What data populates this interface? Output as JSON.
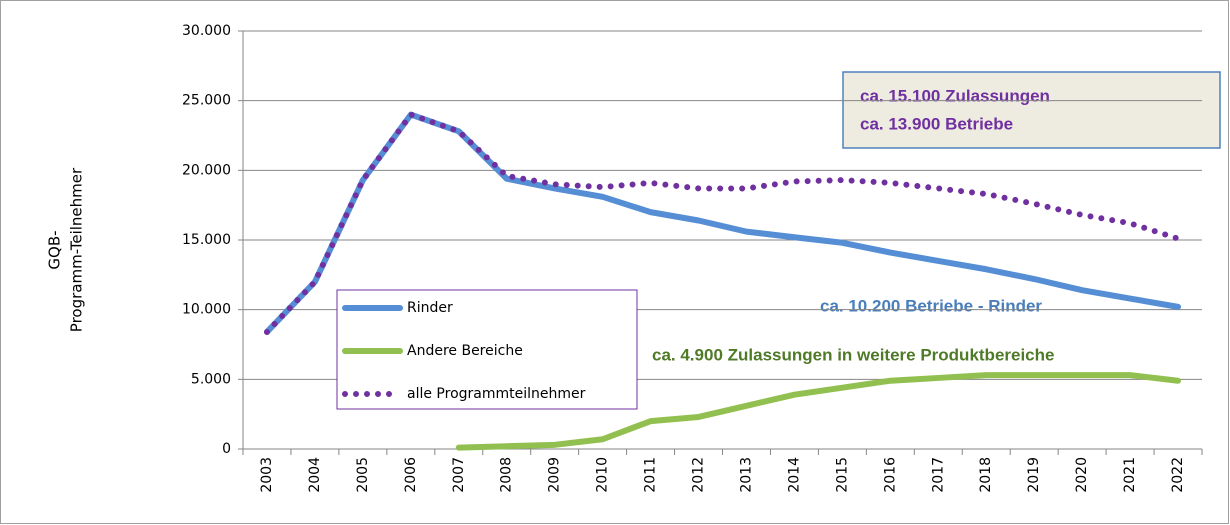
{
  "chart_data": {
    "type": "line",
    "ylabel": [
      "GQB-",
      "Programm-Teilnehmer"
    ],
    "categories": [
      "2003",
      "2004",
      "2005",
      "2006",
      "2007",
      "2008",
      "2009",
      "2010",
      "2011",
      "2012",
      "2013",
      "2014",
      "2015",
      "2016",
      "2017",
      "2018",
      "2019",
      "2020",
      "2021",
      "2022"
    ],
    "series": [
      {
        "name": "Rinder",
        "color": "#558ed5",
        "style": "solid",
        "values": [
          8400,
          12000,
          19300,
          24000,
          22800,
          19400,
          18700,
          18100,
          17000,
          16400,
          15600,
          15200,
          14800,
          14100,
          13500,
          12900,
          12200,
          11400,
          10800,
          10200
        ]
      },
      {
        "name": "Andere Bereiche",
        "color": "#92c050",
        "style": "solid",
        "values": [
          null,
          null,
          null,
          null,
          100,
          200,
          300,
          700,
          2000,
          2300,
          3100,
          3900,
          4400,
          4900,
          5100,
          5300,
          5300,
          5300,
          5300,
          4900
        ]
      },
      {
        "name": "alle Programmteilnehmer",
        "color": "#7030a0",
        "style": "dotted",
        "values": [
          8400,
          12000,
          19300,
          24000,
          22800,
          19600,
          19000,
          18800,
          19100,
          18700,
          18700,
          19200,
          19300,
          19100,
          18700,
          18300,
          17600,
          16800,
          16200,
          15100
        ]
      }
    ],
    "ylim": [
      0,
      30000
    ],
    "yticks": [
      0,
      {
        "value": 5000,
        "label": "5.000"
      },
      {
        "value": 10000,
        "label": "10.000"
      },
      {
        "value": 15000,
        "label": "15.000"
      },
      {
        "value": 20000,
        "label": "20.000"
      },
      {
        "value": 25000,
        "label": "25.000"
      },
      {
        "value": 30000,
        "label": "30.000"
      }
    ],
    "grid": true,
    "box_text": [
      "ca. 15.100 Zulassungen",
      "ca. 13.900 Betriebe"
    ],
    "annotations": [
      "ca. 10.200 Betriebe - Rinder",
      "ca. 4.900 Zulassungen in weitere Produktbereiche"
    ]
  }
}
